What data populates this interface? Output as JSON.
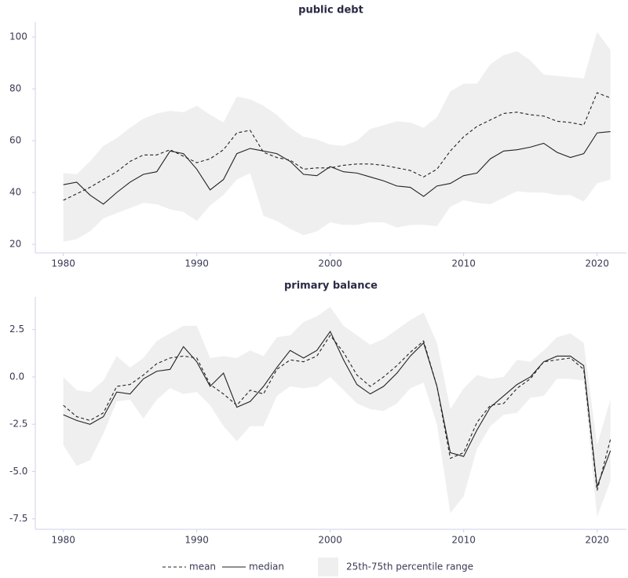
{
  "chart_data": [
    {
      "type": "line",
      "title": "public debt",
      "x": [
        1980,
        1981,
        1982,
        1983,
        1984,
        1985,
        1986,
        1987,
        1988,
        1989,
        1990,
        1991,
        1992,
        1993,
        1994,
        1995,
        1996,
        1997,
        1998,
        1999,
        2000,
        2001,
        2002,
        2003,
        2004,
        2005,
        2006,
        2007,
        2008,
        2009,
        2010,
        2011,
        2012,
        2013,
        2014,
        2015,
        2016,
        2017,
        2018,
        2019,
        2020,
        2021
      ],
      "xlim": [
        1977.9,
        2022.2
      ],
      "xticks": [
        1980,
        1990,
        2000,
        2010,
        2020
      ],
      "ylim": [
        16.7,
        105.8
      ],
      "yticks": [
        20,
        40,
        60,
        80,
        100
      ],
      "band": {
        "color": "#efefef",
        "lower": [
          21,
          22,
          25,
          30,
          32,
          34,
          36,
          35.5,
          33.5,
          32.5,
          29,
          35,
          39,
          45,
          47.5,
          31,
          29,
          26,
          23.5,
          25,
          28.5,
          27.5,
          27.5,
          28.5,
          28.5,
          26.5,
          27.5,
          27.5,
          27,
          34.5,
          37,
          36,
          35.5,
          38,
          40.5,
          40,
          40,
          39,
          39,
          36.5,
          43.5,
          45
        ],
        "upper": [
          47.5,
          47,
          52,
          58,
          61,
          65,
          68.5,
          70.5,
          71.5,
          71,
          73.5,
          70,
          67,
          77,
          76,
          73.5,
          70,
          65,
          61.5,
          60.5,
          58.5,
          58,
          60,
          64.5,
          66,
          67.5,
          67,
          65,
          69,
          79,
          82,
          82,
          89.5,
          93,
          94.5,
          91,
          85.5,
          85,
          84.5,
          84,
          102,
          95
        ]
      },
      "series": [
        {
          "color": "#222222",
          "dash": true,
          "values": [
            37,
            39.5,
            42,
            45,
            48,
            52,
            54.5,
            54.5,
            56.5,
            54,
            51.5,
            53,
            56.5,
            63,
            64,
            55.5,
            53.5,
            52.5,
            49,
            49.5,
            49.5,
            50.5,
            51,
            51,
            50.5,
            49.5,
            48.5,
            46,
            49,
            56,
            61.5,
            65.5,
            68,
            70.5,
            71,
            70,
            69.5,
            67.5,
            67,
            66,
            78.5,
            76.5
          ]
        },
        {
          "color": "#222222",
          "dash": false,
          "values": [
            43,
            44,
            39,
            35.5,
            40,
            44,
            47,
            48,
            56,
            55,
            49,
            41,
            45,
            55,
            57,
            56,
            55,
            52,
            47,
            46.5,
            50,
            48,
            47.5,
            46,
            44.5,
            42.5,
            42,
            38.5,
            42.5,
            43.5,
            46.5,
            47.5,
            53,
            56,
            56.5,
            57.5,
            59,
            55.5,
            53.5,
            55,
            63,
            63.5
          ]
        }
      ]
    },
    {
      "type": "line",
      "title": "primary balance",
      "x": [
        1980,
        1981,
        1982,
        1983,
        1984,
        1985,
        1986,
        1987,
        1988,
        1989,
        1990,
        1991,
        1992,
        1993,
        1994,
        1995,
        1996,
        1997,
        1998,
        1999,
        2000,
        2001,
        2002,
        2003,
        2004,
        2005,
        2006,
        2007,
        2008,
        2009,
        2010,
        2011,
        2012,
        2013,
        2014,
        2015,
        2016,
        2017,
        2018,
        2019,
        2020,
        2021
      ],
      "xlim": [
        1977.9,
        2022.2
      ],
      "xticks": [
        1980,
        1990,
        2000,
        2010,
        2020
      ],
      "ylim": [
        -8.05,
        4.23
      ],
      "yticks": [
        2.5,
        {
          "value": 0,
          "label": "0.0"
        },
        -2.5,
        {
          "value": -5,
          "label": "-5.0"
        },
        -7.5
      ],
      "band": {
        "name": "25th-75th percentile range",
        "color": "#efefef",
        "lower": [
          -3.6,
          -4.7,
          -4.4,
          -3.0,
          -1.3,
          -1.2,
          -2.2,
          -1.2,
          -0.6,
          -0.9,
          -0.8,
          -1.5,
          -2.6,
          -3.4,
          -2.6,
          -2.6,
          -1.0,
          -0.5,
          -0.6,
          -0.5,
          0.0,
          -0.7,
          -1.4,
          -1.7,
          -1.8,
          -1.4,
          -0.6,
          -0.3,
          -2.5,
          -7.2,
          -6.3,
          -3.8,
          -2.6,
          -2.0,
          -1.9,
          -1.1,
          -1.0,
          -0.1,
          -0.1,
          -0.2,
          -7.4,
          -5.5
        ],
        "upper": [
          0.0,
          -0.7,
          -0.8,
          -0.2,
          1.1,
          0.5,
          1.0,
          1.9,
          2.3,
          2.7,
          2.7,
          1.0,
          1.1,
          1.0,
          1.4,
          1.1,
          2.1,
          2.2,
          2.9,
          3.2,
          3.7,
          2.7,
          2.2,
          1.7,
          2.0,
          2.5,
          3.0,
          3.4,
          1.8,
          -1.7,
          -0.6,
          0.1,
          -0.1,
          0.0,
          0.9,
          0.8,
          1.4,
          2.1,
          2.3,
          1.8,
          -3.6,
          -1.2
        ]
      },
      "series": [
        {
          "name": "mean",
          "color": "#222222",
          "dash": true,
          "values": [
            -1.5,
            -2.1,
            -2.3,
            -1.9,
            -0.5,
            -0.4,
            0.1,
            0.7,
            1.0,
            1.1,
            1.0,
            -0.4,
            -0.9,
            -1.5,
            -0.7,
            -0.9,
            0.4,
            0.9,
            0.8,
            1.1,
            2.2,
            1.3,
            0.1,
            -0.5,
            0.0,
            0.6,
            1.3,
            1.9,
            -0.5,
            -4.3,
            -4.0,
            -2.4,
            -1.5,
            -1.4,
            -0.6,
            -0.1,
            0.8,
            0.9,
            1.0,
            0.4,
            -6.0,
            -3.3
          ]
        },
        {
          "name": "median",
          "color": "#222222",
          "dash": false,
          "values": [
            -2.0,
            -2.3,
            -2.5,
            -2.1,
            -0.8,
            -0.9,
            -0.1,
            0.3,
            0.4,
            1.6,
            0.8,
            -0.5,
            0.2,
            -1.6,
            -1.3,
            -0.5,
            0.5,
            1.4,
            1.0,
            1.4,
            2.4,
            0.9,
            -0.4,
            -0.9,
            -0.5,
            0.2,
            1.1,
            1.8,
            -0.5,
            -4.0,
            -4.2,
            -2.8,
            -1.6,
            -1.0,
            -0.4,
            0.0,
            0.8,
            1.1,
            1.1,
            0.6,
            -5.8,
            -3.9
          ]
        }
      ]
    }
  ]
}
